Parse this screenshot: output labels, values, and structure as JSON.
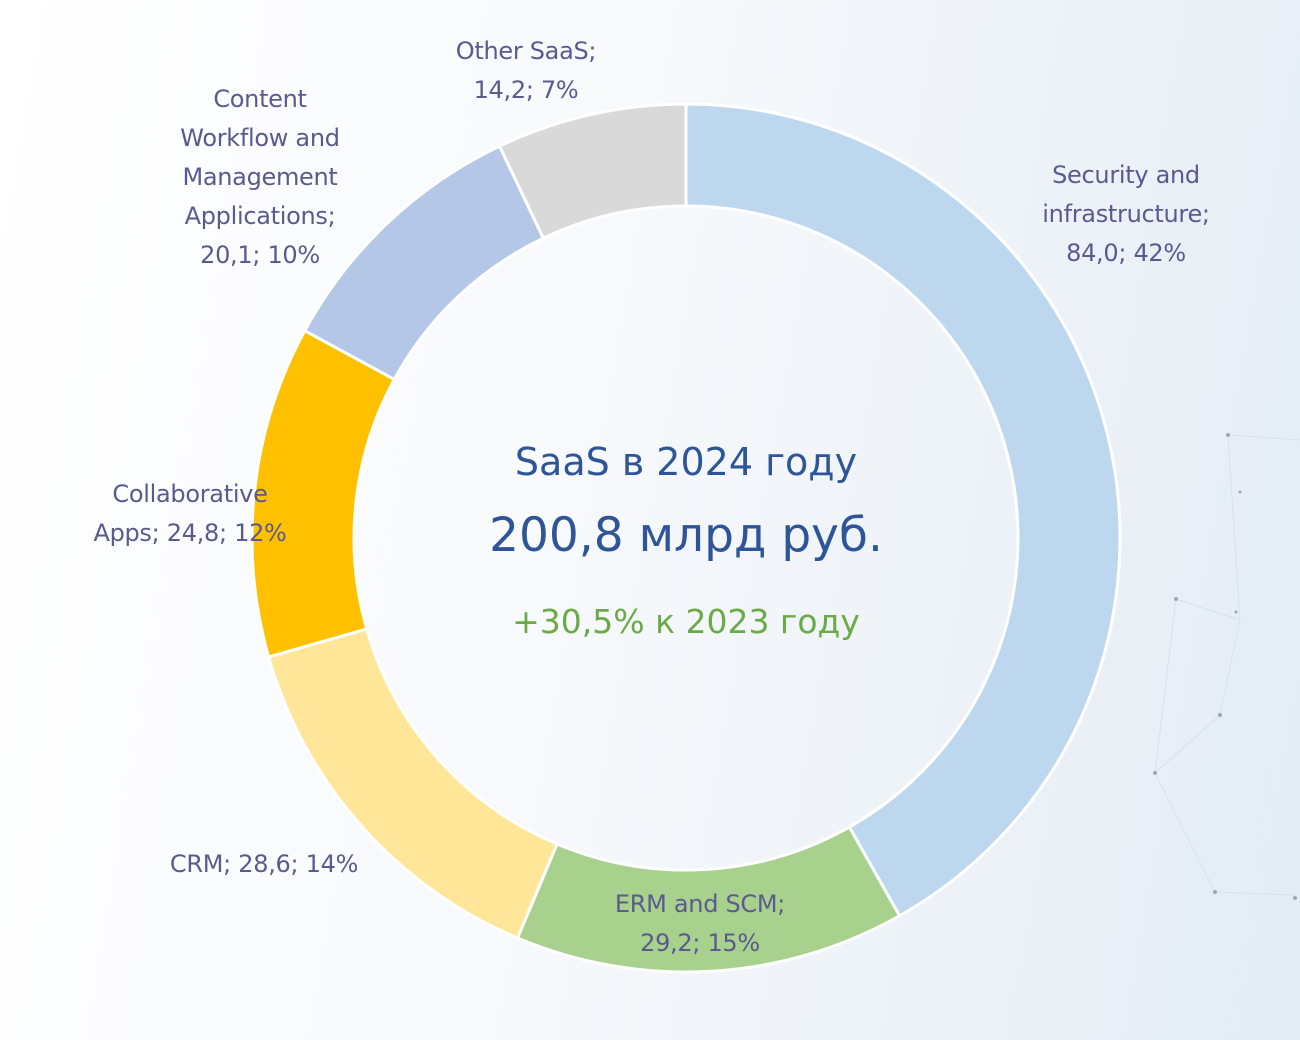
{
  "chart_data": {
    "type": "pie",
    "variant": "donut",
    "title": "SaaS в 2024 году",
    "total_label": "200,8 млрд руб.",
    "subtitle": "+30,5% к 2023 году",
    "unit": "млрд руб.",
    "total": 200.8,
    "growth_percent": 30.5,
    "start": "12 o'clock, clockwise",
    "slices": [
      {
        "name": "Security and infrastructure",
        "value": 84.0,
        "percent": 42,
        "color": "#bdd7ee",
        "label_lines": [
          "Security and",
          "infrastructure;",
          "84,0; 42%"
        ]
      },
      {
        "name": "ERM and SCM",
        "value": 29.2,
        "percent": 15,
        "color": "#a9d18e",
        "label_lines": [
          "ERM and SCM;",
          "29,2; 15%"
        ]
      },
      {
        "name": "CRM",
        "value": 28.6,
        "percent": 14,
        "color": "#ffe699",
        "label_lines": [
          "CRM; 28,6; 14%"
        ]
      },
      {
        "name": "Collaborative Apps",
        "value": 24.8,
        "percent": 12,
        "color": "#ffc000",
        "label_lines": [
          "Collaborative",
          "Apps; 24,8; 12%"
        ]
      },
      {
        "name": "Content Workflow and Management Applications",
        "value": 20.1,
        "percent": 10,
        "color": "#b4c7e7",
        "label_lines": [
          "Content",
          "Workflow and",
          "Management",
          "Applications;",
          "20,1; 10%"
        ]
      },
      {
        "name": "Other SaaS",
        "value": 14.2,
        "percent": 7,
        "color": "#d9d9d9",
        "label_lines": [
          "Other SaaS;",
          "14,2; 7%"
        ]
      }
    ]
  }
}
